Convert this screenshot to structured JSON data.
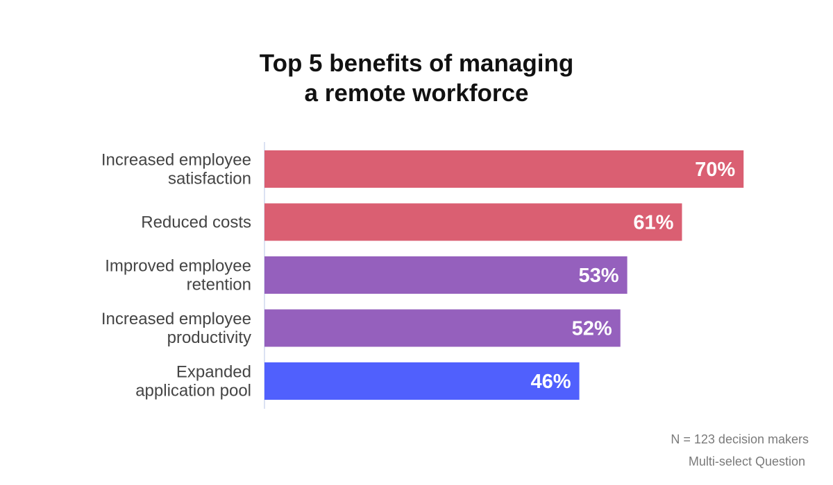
{
  "chart_data": {
    "type": "bar",
    "orientation": "horizontal",
    "title_lines": [
      "Top 5 benefits of managing",
      "a remote workforce"
    ],
    "categories": [
      [
        "Increased employee",
        "satisfaction"
      ],
      [
        "Reduced costs"
      ],
      [
        "Improved employee",
        "retention"
      ],
      [
        "Increased employee",
        "productivity"
      ],
      [
        "Expanded",
        "application pool"
      ]
    ],
    "values": [
      70,
      61,
      53,
      52,
      46
    ],
    "value_labels": [
      "70%",
      "61%",
      "53%",
      "52%",
      "46%"
    ],
    "colors": [
      "#da5f72",
      "#da5f72",
      "#9560bd",
      "#9560bd",
      "#5060fd"
    ],
    "xlim": [
      0,
      100
    ],
    "grid": false,
    "legend": "none"
  },
  "footnotes": {
    "sample": "N = 123 decision makers",
    "question_type": "Multi-select Question"
  },
  "colors": {
    "axis_line": "#cfd9ef",
    "label_text": "#444444",
    "value_text": "#ffffff"
  }
}
